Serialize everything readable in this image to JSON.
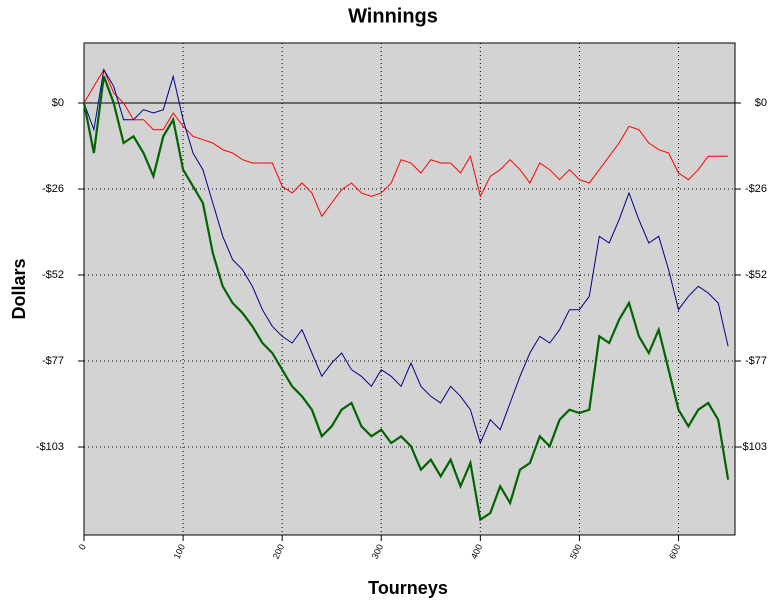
{
  "chart_data": {
    "type": "line",
    "title": "Winnings",
    "xlabel": "Tourneys",
    "ylabel": "Dollars",
    "x": [
      0,
      10,
      20,
      30,
      40,
      50,
      60,
      70,
      80,
      90,
      100,
      110,
      120,
      130,
      140,
      150,
      160,
      170,
      180,
      190,
      200,
      210,
      220,
      230,
      240,
      250,
      260,
      270,
      280,
      290,
      300,
      310,
      320,
      330,
      340,
      350,
      360,
      370,
      380,
      390,
      400,
      410,
      420,
      430,
      440,
      450,
      460,
      470,
      480,
      490,
      500,
      510,
      520,
      530,
      540,
      550,
      560,
      570,
      580,
      590,
      600,
      610,
      620,
      630,
      640,
      650
    ],
    "series": [
      {
        "color": "#ff0000",
        "values": [
          0,
          5,
          10,
          3,
          0,
          -5,
          -5,
          -8,
          -8,
          -3,
          -7,
          -10,
          -11,
          -12,
          -14,
          -15,
          -17,
          -18,
          -18,
          -18,
          -25,
          -27,
          -24,
          -27,
          -34,
          -30,
          -26,
          -24,
          -27,
          -28,
          -27,
          -24,
          -17,
          -18,
          -21,
          -17,
          -18,
          -18,
          -21,
          -16,
          -28,
          -22,
          -20,
          -17,
          -20,
          -24,
          -18,
          -20,
          -23,
          -20,
          -23,
          -24,
          -20,
          -16,
          -12,
          -7,
          -8,
          -12,
          -14,
          -15,
          -21,
          -23,
          -20,
          -16,
          -16,
          -16
        ]
      },
      {
        "color": "#00008b",
        "values": [
          0,
          -8,
          10,
          5,
          -5,
          -5,
          -2,
          -3,
          -2,
          8,
          -5,
          -15,
          -20,
          -30,
          -40,
          -47,
          -50,
          -55,
          -62,
          -67,
          -70,
          -72,
          -68,
          -75,
          -82,
          -78,
          -75,
          -80,
          -82,
          -85,
          -80,
          -82,
          -85,
          -78,
          -85,
          -88,
          -90,
          -85,
          -88,
          -92,
          -102,
          -95,
          -98,
          -90,
          -82,
          -75,
          -70,
          -72,
          -68,
          -62,
          -62,
          -58,
          -40,
          -42,
          -35,
          -27,
          -35,
          -42,
          -40,
          -50,
          -62,
          -58,
          -55,
          -57,
          -60,
          -73
        ]
      },
      {
        "color": "#006400",
        "values": [
          0,
          -15,
          8,
          0,
          -12,
          -10,
          -15,
          -22,
          -10,
          -5,
          -20,
          -25,
          -30,
          -45,
          -55,
          -60,
          -63,
          -67,
          -72,
          -75,
          -80,
          -85,
          -88,
          -92,
          -100,
          -97,
          -92,
          -90,
          -97,
          -100,
          -98,
          -102,
          -100,
          -103,
          -110,
          -107,
          -112,
          -107,
          -115,
          -108,
          -125,
          -123,
          -115,
          -120,
          -110,
          -108,
          -100,
          -103,
          -95,
          -92,
          -93,
          -92,
          -70,
          -72,
          -65,
          -60,
          -70,
          -75,
          -68,
          -80,
          -92,
          -97,
          -92,
          -90,
          -95,
          -113
        ]
      }
    ],
    "xlim": [
      0,
      657
    ],
    "xticks": [
      0,
      100,
      200,
      300,
      400,
      500,
      600
    ],
    "ylim": [
      -129.6,
      18
    ],
    "yticks": [
      {
        "value": 0,
        "label": "$0"
      },
      {
        "value": -25.8,
        "label": "-$26"
      },
      {
        "value": -51.6,
        "label": "-$52"
      },
      {
        "value": -77.4,
        "label": "-$77"
      },
      {
        "value": -103.2,
        "label": "-$103"
      }
    ],
    "grid": true
  }
}
